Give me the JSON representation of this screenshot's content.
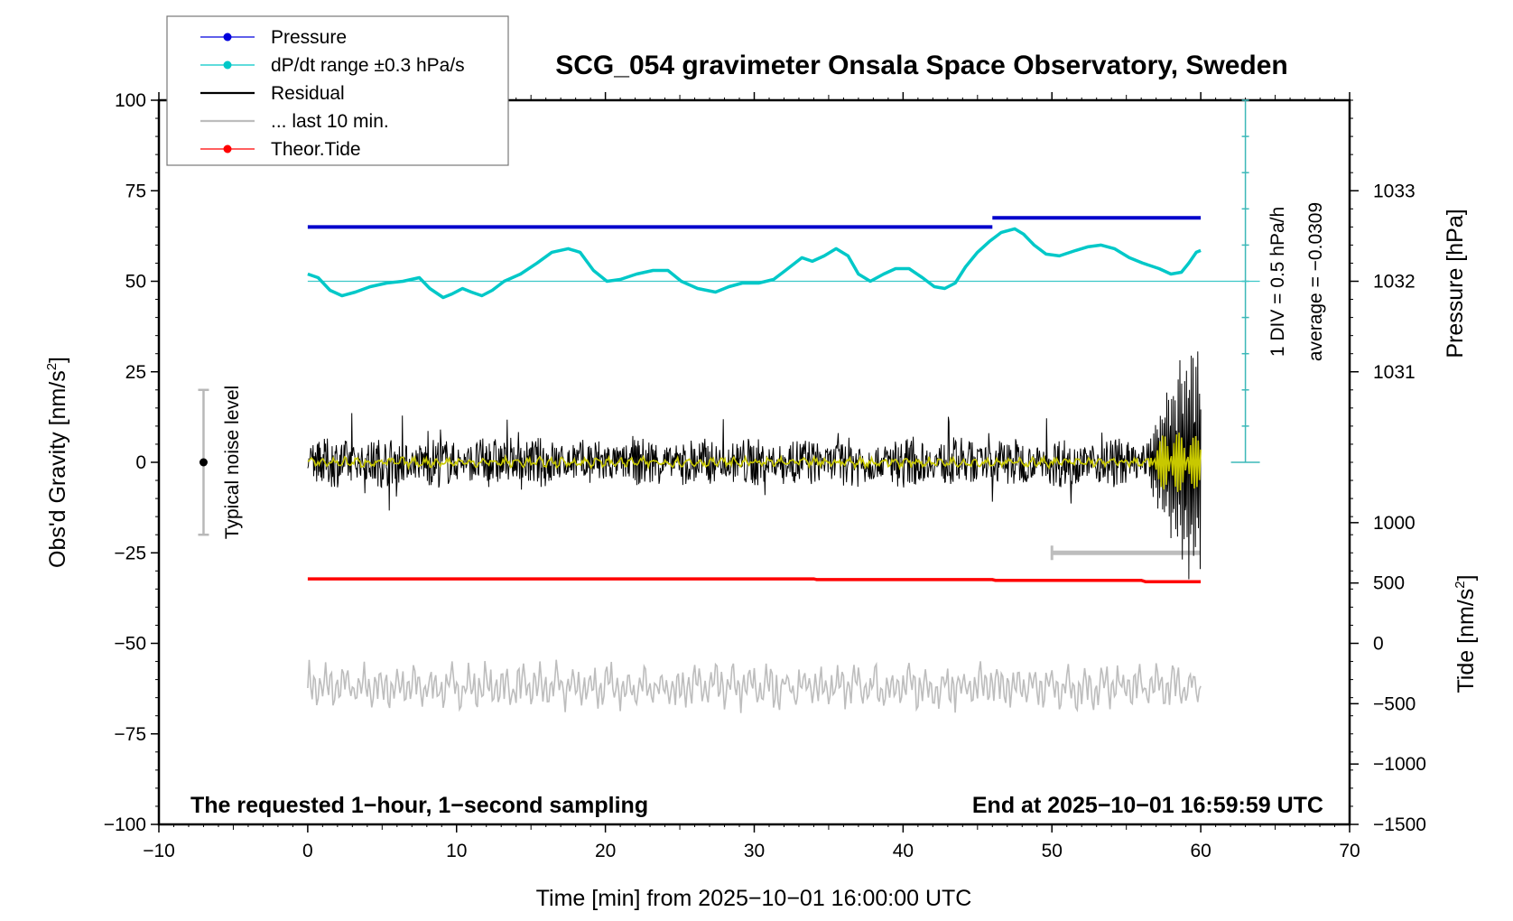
{
  "chart_data": {
    "type": "line",
    "title": "SCG_054 gravimeter Onsala Space Observatory, Sweden",
    "xlabel": "Time [min] from 2025−10−01 16:00:00 UTC",
    "ylabel_left": "Obs'd Gravity [nm/s",
    "ylabel_left_sup": "2",
    "ylabel_left_end": "]",
    "ylabel_right_top": "Pressure [hPa]",
    "ylabel_right_bottom": "Tide [nm/s",
    "ylabel_right_bottom_sup": "2",
    "ylabel_right_bottom_end": "]",
    "xlim": [
      -10,
      70
    ],
    "ylim": [
      -100,
      100
    ],
    "x_ticks": [
      "−10",
      "0",
      "10",
      "20",
      "30",
      "40",
      "50",
      "60",
      "70"
    ],
    "y_ticks_left": [
      "100",
      "75",
      "50",
      "25",
      "0",
      "−25",
      "−50",
      "−75",
      "−100"
    ],
    "pressure_ticks": [
      "1033",
      "1032",
      "1031"
    ],
    "tide_ticks": [
      "1000",
      "500",
      "0",
      "−500",
      "−1000",
      "−1500"
    ],
    "note_left": "The requested 1−hour, 1−second sampling",
    "note_right": "End at 2025−10−01 16:59:59 UTC",
    "noise_label": "Typical noise level",
    "noise_bar": {
      "center": 0,
      "half_range": 20,
      "x": -7
    },
    "scale_note_1": "1 DIV = 0.5 hPa/h",
    "scale_note_2": "average = −0.0309",
    "scale_bar": {
      "x": 63,
      "y_top": 100,
      "y_bottom": 0,
      "divisions": 10
    },
    "last_window_bar": {
      "x_start": 50,
      "x_end": 60,
      "y": -25
    },
    "legend": [
      {
        "label": "Pressure",
        "color": "#0000dd",
        "marker": true
      },
      {
        "label": "dP/dt range ±0.3 hPa/s",
        "color": "#00c8c8",
        "marker": true
      },
      {
        "label": "Residual",
        "color": "#000000",
        "marker": false
      },
      {
        "label": "... last 10 min.",
        "color": "#bdbdbd",
        "marker": false
      },
      {
        "label": "Theor.Tide",
        "color": "#ff0000",
        "marker": true
      }
    ],
    "series": [
      {
        "name": "Pressure",
        "color": "#0000cc",
        "segments": [
          {
            "x": [
              0,
              46
            ],
            "y": [
              65,
              65
            ]
          },
          {
            "x": [
              46,
              60
            ],
            "y": [
              67.5,
              67.5
            ]
          }
        ]
      },
      {
        "name": "dP/dt range ±0.3 hPa/s",
        "color": "#00c8c8",
        "x": [
          0,
          0.7,
          1.5,
          2.3,
          3.2,
          4.2,
          5.3,
          6.4,
          7.5,
          8.2,
          9.1,
          9.7,
          10.4,
          11,
          11.7,
          12.4,
          13.2,
          14.3,
          15.4,
          16.4,
          17.5,
          18.3,
          19.2,
          20.1,
          21,
          22.1,
          23.2,
          24.2,
          25.1,
          26.2,
          27.4,
          28.3,
          29.2,
          30.3,
          31.3,
          32.1,
          33.2,
          33.9,
          34.7,
          35.5,
          36.3,
          37,
          37.8,
          38.7,
          39.5,
          40.4,
          41.3,
          42.1,
          42.8,
          43.5,
          44.2,
          45,
          45.8,
          46.6,
          47.5,
          48.1,
          48.8,
          49.6,
          50.5,
          51.6,
          52.4,
          53.3,
          54.2,
          55.2,
          56.1,
          57.2,
          58,
          58.7,
          59.2,
          59.7,
          60
        ],
        "y": [
          52,
          51,
          47.5,
          46,
          47,
          48.5,
          49.5,
          50,
          51,
          48,
          45.5,
          46.5,
          48,
          47,
          46,
          47.5,
          50,
          52,
          55,
          58,
          59,
          58,
          53,
          50,
          50.5,
          52,
          53,
          53,
          50,
          48,
          47,
          48.5,
          49.5,
          49.5,
          50.5,
          53,
          56.5,
          55.5,
          57,
          59,
          57,
          52,
          50,
          52,
          53.5,
          53.5,
          51,
          48.5,
          48,
          49.5,
          54,
          58,
          61,
          63.5,
          64.5,
          63,
          60,
          57.5,
          57,
          58.5,
          59.5,
          60,
          59,
          56.5,
          55,
          53.5,
          52,
          52.5,
          55,
          58,
          58.5
        ]
      },
      {
        "name": "Residual",
        "color": "#000000",
        "amplitude": 7,
        "burst_start": 56.5,
        "burst_amplitude": 33
      },
      {
        "name": "Residual smoothed",
        "color": "#c8c800",
        "amplitude": 1.3,
        "burst_start": 56.5,
        "burst_amplitude": 10
      },
      {
        "name": "... last 10 min.",
        "color": "#bdbdbd",
        "offset": -62,
        "amplitude": 6
      },
      {
        "name": "Theor.Tide",
        "color": "#ff0000",
        "x": [
          0,
          34,
          34.2,
          46,
          46.2,
          56,
          56.3,
          60
        ],
        "y": [
          -32.2,
          -32.2,
          -32.4,
          -32.4,
          -32.6,
          -32.6,
          -33,
          -33
        ]
      }
    ]
  }
}
